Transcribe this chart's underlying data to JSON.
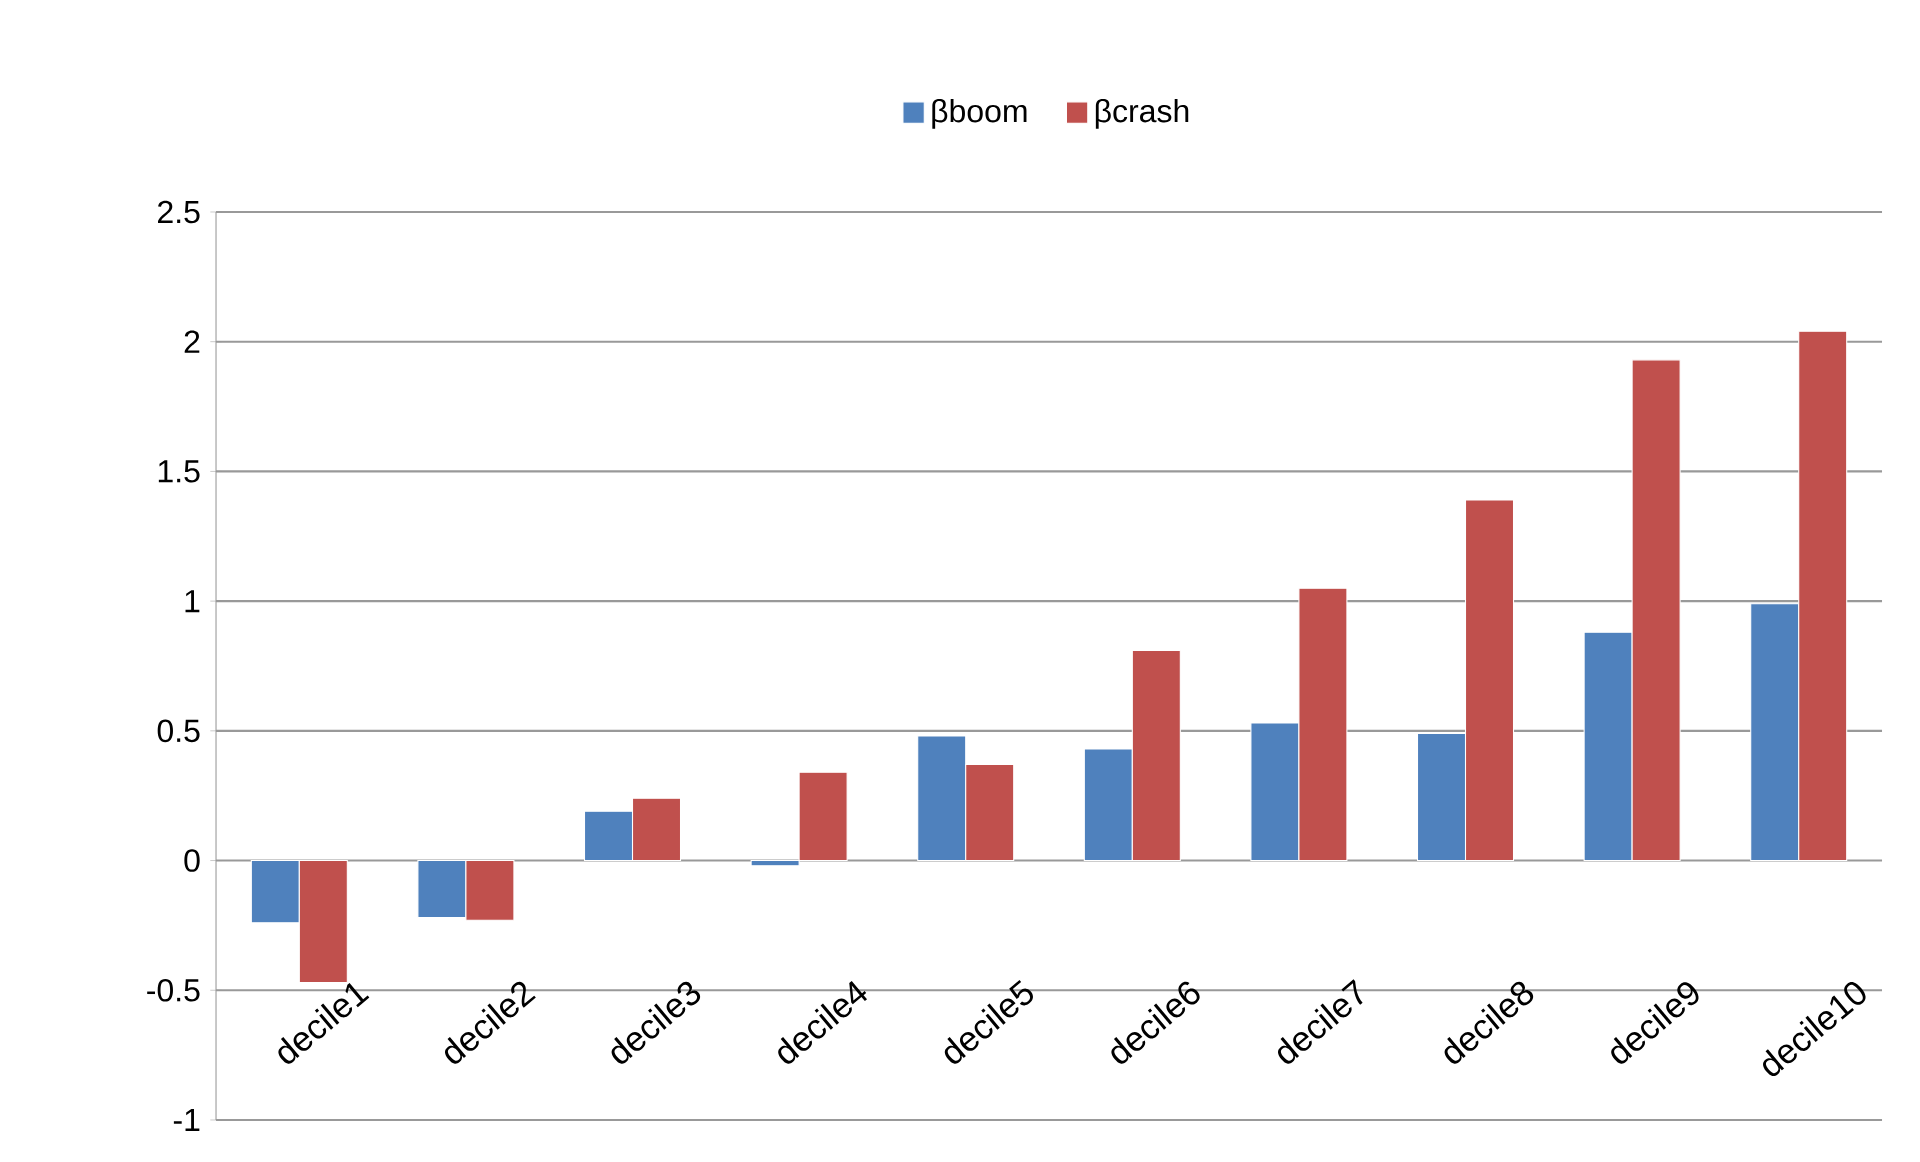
{
  "chart_data": {
    "type": "bar",
    "categories": [
      "decile1",
      "decile2",
      "decile3",
      "decile4",
      "decile5",
      "decile6",
      "decile7",
      "decile8",
      "decile9",
      "decile10"
    ],
    "series": [
      {
        "name": "βboom",
        "color": "#4f81bd",
        "values": [
          -0.24,
          -0.22,
          0.19,
          -0.02,
          0.48,
          0.43,
          0.53,
          0.49,
          0.88,
          0.99
        ]
      },
      {
        "name": "βcrash",
        "color": "#c0504d",
        "values": [
          -0.47,
          -0.23,
          0.24,
          0.34,
          0.37,
          0.81,
          1.05,
          1.39,
          1.93,
          2.04
        ]
      }
    ],
    "ylim": [
      -1,
      2.5
    ],
    "yticks": [
      -1,
      -0.5,
      0,
      0.5,
      1,
      1.5,
      2,
      2.5
    ],
    "grid": "y",
    "legend": "top"
  }
}
